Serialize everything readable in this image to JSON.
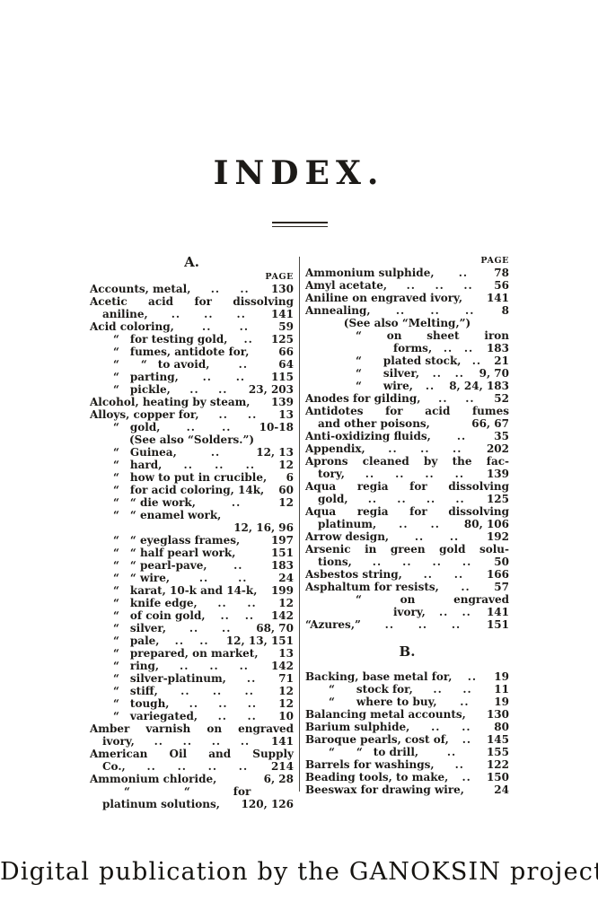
{
  "page": {
    "title": "INDEX.",
    "footer": "Digital publication by the GANOKSIN project",
    "colors": {
      "ink": "#1c1a17",
      "paper": "#ffffff",
      "divider": "#4d4a45"
    }
  },
  "index": {
    "columns": {
      "left": {
        "lines": [
          {
            "h": "A."
          },
          {
            "pl": "PAGE"
          },
          {
            "t": "Accounts, metal,",
            "d": 2,
            "p": "130"
          },
          {
            "t": "Acetic acid for dissolving",
            "j": 1
          },
          {
            "t": "aniline,",
            "d": 3,
            "p": "141",
            "ind": 1
          },
          {
            "t": "Acid coloring,",
            "d": 2,
            "p": "59"
          },
          {
            "t": "“ for testing gold,",
            "d": 1,
            "p": "125",
            "ind": 2
          },
          {
            "t": "“ fumes, antidote for,",
            "d": 0,
            "p": "66",
            "ind": 2
          },
          {
            "t": "“  “ to avoid,",
            "d": 1,
            "p": "64",
            "ind": 2
          },
          {
            "t": "“ parting,",
            "d": 2,
            "p": "115",
            "ind": 2
          },
          {
            "t": "“ pickle,",
            "d": 2,
            "p": "23, 203",
            "ind": 2
          },
          {
            "t": "Alcohol, heating by steam,",
            "d": 0,
            "p": "139"
          },
          {
            "t": "Alloys, copper for,",
            "d": 2,
            "p": "13"
          },
          {
            "t": "“ gold,",
            "d": 2,
            "p": "10-18",
            "ind": 2
          },
          {
            "c": "(See also “Solders.”)"
          },
          {
            "t": "“ Guinea,",
            "d": 1,
            "p": "12, 13",
            "ind": 2
          },
          {
            "t": "“ hard,",
            "d": 3,
            "p": "12",
            "ind": 2
          },
          {
            "t": "“ how to put in crucible,",
            "d": 0,
            "p": "6",
            "ind": 2
          },
          {
            "t": "“ for acid coloring, 14k,",
            "d": 0,
            "p": "60",
            "ind": 2
          },
          {
            "t": "“ “ die work,",
            "d": 1,
            "p": "12",
            "ind": 2
          },
          {
            "t": "“ “ enamel work,",
            "d": 0,
            "p": "",
            "ind": 2
          },
          {
            "t": "",
            "d": 0,
            "p": "12, 16, 96"
          },
          {
            "t": "“ “ eyeglass frames,",
            "d": 0,
            "p": "197",
            "ind": 2
          },
          {
            "t": "“ “ half pearl work,",
            "d": 0,
            "p": "151",
            "ind": 2
          },
          {
            "t": "“ “ pearl-pave,",
            "d": 1,
            "p": "183",
            "ind": 2
          },
          {
            "t": "“ “ wire,",
            "d": 2,
            "p": "24",
            "ind": 2
          },
          {
            "t": "“ karat, 10-k and 14-k,",
            "d": 0,
            "p": "199",
            "ind": 2
          },
          {
            "t": "“ knife edge,",
            "d": 2,
            "p": "12",
            "ind": 2
          },
          {
            "t": "“ of coin gold,",
            "d": 2,
            "p": "142",
            "ind": 2
          },
          {
            "t": "“ silver,",
            "d": 2,
            "p": "68, 70",
            "ind": 2
          },
          {
            "t": "“ pale,",
            "d": 2,
            "p": "12, 13, 151",
            "ind": 2
          },
          {
            "t": "“ prepared, on market,",
            "d": 0,
            "p": "13",
            "ind": 2
          },
          {
            "t": "“ ring,",
            "d": 3,
            "p": "142",
            "ind": 2
          },
          {
            "t": "“ silver-platinum,",
            "d": 1,
            "p": "71",
            "ind": 2
          },
          {
            "t": "“ stiff,",
            "d": 3,
            "p": "12",
            "ind": 2
          },
          {
            "t": "“ tough,",
            "d": 3,
            "p": "12",
            "ind": 2
          },
          {
            "t": "“ variegated,",
            "d": 2,
            "p": "10",
            "ind": 2
          },
          {
            "t": "Amber varnish on engraved",
            "j": 1
          },
          {
            "t": "ivory,",
            "d": 4,
            "p": "141",
            "ind": 1
          },
          {
            "t": "American Oil and Supply",
            "j": 1
          },
          {
            "t": "Co.,",
            "d": 4,
            "p": "214",
            "ind": 1
          },
          {
            "t": "Ammonium chloride,",
            "d": 0,
            "p": "6, 28"
          },
          {
            "t": " “     “    for",
            "d": 0,
            "p": "",
            "ind": 2
          },
          {
            "t": "platinum solutions,",
            "d": 0,
            "p": "120, 126",
            "ind": 1
          }
        ]
      },
      "right": {
        "lines": [
          {
            "pl": "PAGE"
          },
          {
            "t": "Ammonium sulphide,",
            "d": 1,
            "p": "78"
          },
          {
            "t": "Amyl acetate,",
            "d": 3,
            "p": "56"
          },
          {
            "t": "Aniline on engraved ivory,",
            "d": 0,
            "p": "141"
          },
          {
            "t": "Annealing,",
            "d": 3,
            "p": "8"
          },
          {
            "c": "(See also “Melting,”)"
          },
          {
            "t": "“ on sheet iron",
            "j": 1,
            "ind": 3
          },
          {
            "t": "forms,",
            "d": 2,
            "p": "183",
            "ind": 4
          },
          {
            "t": "“  plated stock,",
            "d": 1,
            "p": "21",
            "ind": 3
          },
          {
            "t": "“  silver,",
            "d": 2,
            "p": "9, 70",
            "ind": 3
          },
          {
            "t": "“  wire,",
            "d": 1,
            "p": "8, 24, 183",
            "ind": 3
          },
          {
            "t": "Anodes for gilding,",
            "d": 2,
            "p": "52"
          },
          {
            "t": "Antidotes for acid fumes",
            "j": 1
          },
          {
            "t": "and other poisons,",
            "d": 0,
            "p": "66, 67",
            "ind": 1
          },
          {
            "t": "Anti-oxidizing fluids,",
            "d": 1,
            "p": "35"
          },
          {
            "t": "Appendix,",
            "d": 3,
            "p": "202"
          },
          {
            "t": "Aprons cleaned by the fac-",
            "j": 1
          },
          {
            "t": "tory,",
            "d": 4,
            "p": "139",
            "ind": 1
          },
          {
            "t": "Aqua regia for dissolving",
            "j": 1
          },
          {
            "t": "gold,",
            "d": 4,
            "p": "125",
            "ind": 1
          },
          {
            "t": "Aqua regia for dissolving",
            "j": 1
          },
          {
            "t": "platinum,",
            "d": 2,
            "p": "80, 106",
            "ind": 1
          },
          {
            "t": "Arrow design,",
            "d": 2,
            "p": "192"
          },
          {
            "t": "Arsenic in green gold solu-",
            "j": 1
          },
          {
            "t": "tions,",
            "d": 4,
            "p": "50",
            "ind": 1
          },
          {
            "t": "Asbestos string,",
            "d": 2,
            "p": "166"
          },
          {
            "t": "Asphaltum for resists,",
            "d": 1,
            "p": "57"
          },
          {
            "t": "“ on engraved",
            "j": 1,
            "ind": 3
          },
          {
            "t": "ivory,",
            "d": 2,
            "p": "141",
            "ind": 4
          },
          {
            "t": "“Azures,”",
            "d": 3,
            "p": "151"
          },
          {
            "h": "B."
          },
          {
            "t": "Backing, base metal for,",
            "d": 1,
            "p": "19"
          },
          {
            "t": "“  stock for,",
            "d": 2,
            "p": "11",
            "ind": 2
          },
          {
            "t": "“  where to buy,",
            "d": 1,
            "p": "19",
            "ind": 2
          },
          {
            "t": "Balancing metal accounts,",
            "d": 0,
            "p": "130"
          },
          {
            "t": "Barium sulphide,",
            "d": 2,
            "p": "80"
          },
          {
            "t": "Baroque pearls, cost of,",
            "d": 1,
            "p": "145"
          },
          {
            "t": "“  “ to drill,",
            "d": 1,
            "p": "155",
            "ind": 2
          },
          {
            "t": "Barrels for washings,",
            "d": 1,
            "p": "122"
          },
          {
            "t": "Beading tools, to make,",
            "d": 1,
            "p": "150"
          },
          {
            "t": "Beeswax for drawing wire,",
            "d": 0,
            "p": "24"
          }
        ]
      }
    }
  }
}
